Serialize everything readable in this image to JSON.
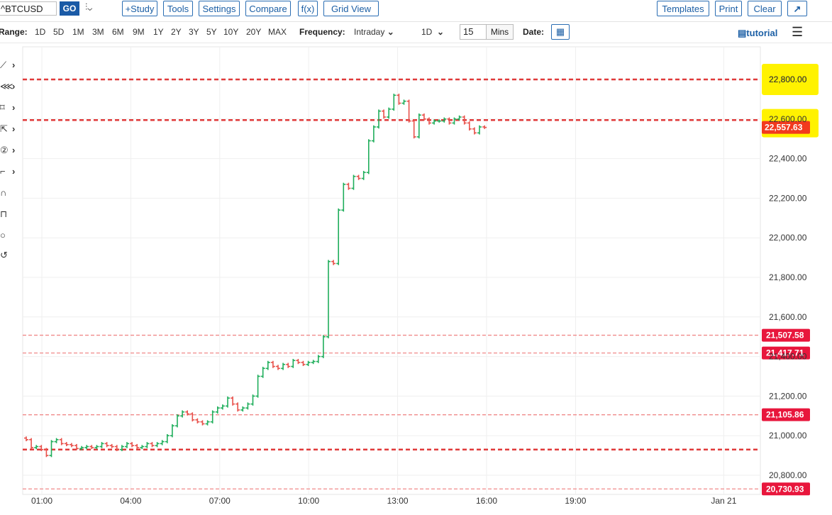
{
  "toolbar": {
    "symbol": "^BTCUSD",
    "go_label": "GO",
    "chart_type_glyph": "⫶⌄",
    "buttons": [
      "+Study",
      "Tools",
      "Settings",
      "Compare",
      "f(x)",
      "Grid View"
    ],
    "right_buttons": [
      "Templates",
      "Print",
      "Clear",
      "↗"
    ]
  },
  "range_bar": {
    "range_label": "Range:",
    "ranges": [
      "1D",
      "5D",
      "1M",
      "3M",
      "6M",
      "9M",
      "1Y",
      "2Y",
      "3Y",
      "5Y",
      "10Y",
      "20Y",
      "MAX"
    ],
    "frequency_label": "Frequency:",
    "frequency_value": "Intraday",
    "period_value": "1D",
    "interval_value": "15",
    "interval_unit": "Mins",
    "date_label": "Date:",
    "tutorial_label": "tutorial"
  },
  "drawing_tools": [
    "line-tool-icon",
    "fan-tool-icon",
    "shape-tool-icon",
    "cursor-tool-icon",
    "number-tool-icon",
    "text-tool-icon",
    "magnet-icon",
    "lock-icon",
    "circle-icon",
    "undo-icon"
  ],
  "colors": {
    "up": "#1fae5b",
    "down": "#e8504a",
    "line": "#e03a3a",
    "highlight": "#fff200",
    "flag": "#e8163c"
  },
  "chart_data": {
    "type": "ohlc",
    "x_tick_labels": [
      "01:00",
      "04:00",
      "07:00",
      "10:00",
      "13:00",
      "16:00",
      "19:00",
      "Jan 21"
    ],
    "x_tick_hours": [
      1,
      4,
      7,
      10,
      13,
      16,
      19,
      24
    ],
    "y_tick_labels": [
      "20,800.00",
      "21,000.00",
      "21,200.00",
      "21,400.00",
      "21,600.00",
      "21,800.00",
      "22,000.00",
      "22,200.00",
      "22,400.00",
      "22,600.00",
      "22,800.00"
    ],
    "ylim": [
      20720,
      22950
    ],
    "grid": true,
    "last_price": "22,557.63",
    "last_price_value": 22557.63,
    "horizontal_lines": [
      {
        "label": "22,800.00",
        "value": 22800,
        "style": "thick-dashed",
        "highlight": true
      },
      {
        "value": 22595,
        "style": "thick-dashed"
      },
      {
        "label": "21,507.58",
        "value": 21507.58,
        "style": "thin-dashed"
      },
      {
        "label": "21,417.71",
        "value": 21417.71,
        "style": "thin-dashed"
      },
      {
        "label": "21,105.86",
        "value": 21105.86,
        "style": "thin-dashed"
      },
      {
        "value": 20930,
        "style": "thick-dashed"
      },
      {
        "label": "20,730.93",
        "value": 20730.93,
        "style": "thin-dashed"
      }
    ],
    "candles_close": [
      20980,
      20940,
      20945,
      20930,
      20900,
      20970,
      20980,
      20960,
      20955,
      20950,
      20935,
      20940,
      20945,
      20940,
      20945,
      20960,
      20950,
      20945,
      20930,
      20945,
      20960,
      20950,
      20940,
      20945,
      20960,
      20950,
      20960,
      20970,
      21000,
      21050,
      21100,
      21120,
      21110,
      21080,
      21070,
      21060,
      21070,
      21120,
      21140,
      21150,
      21190,
      21160,
      21130,
      21140,
      21160,
      21200,
      21300,
      21340,
      21370,
      21350,
      21340,
      21360,
      21350,
      21380,
      21370,
      21360,
      21370,
      21375,
      21400,
      21500,
      21880,
      21870,
      22140,
      22270,
      22250,
      22310,
      22300,
      22330,
      22490,
      22560,
      22640,
      22610,
      22650,
      22720,
      22680,
      22690,
      22590,
      22510,
      22620,
      22600,
      22580,
      22590,
      22590,
      22600,
      22580,
      22600,
      22610,
      22580,
      22550,
      22530,
      22560,
      22557.63
    ]
  }
}
